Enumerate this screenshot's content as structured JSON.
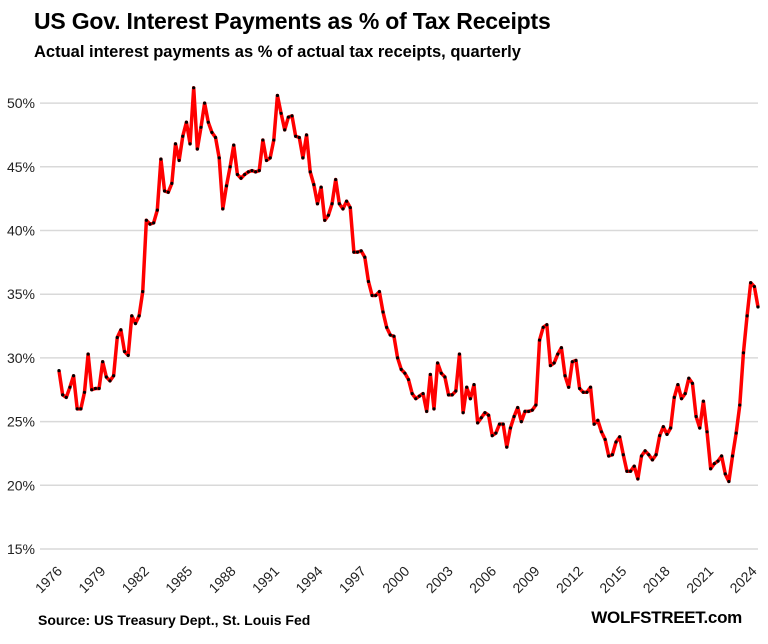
{
  "chart_data": {
    "type": "line",
    "title": "US Gov. Interest Payments as % of Tax Receipts",
    "subtitle": "Actual interest payments as % of actual tax receipts, quarterly",
    "xlabel": "",
    "ylabel": "",
    "xlim": [
      1976,
      2024.3
    ],
    "ylim": [
      15,
      50
    ],
    "x_ticks": [
      "1976",
      "1979",
      "1982",
      "1985",
      "1988",
      "1991",
      "1994",
      "1997",
      "2000",
      "2003",
      "2006",
      "2009",
      "2012",
      "2015",
      "2018",
      "2021",
      "2024"
    ],
    "y_ticks": [
      "15%",
      "20%",
      "25%",
      "30%",
      "35%",
      "40%",
      "45%",
      "50%"
    ],
    "grid": true,
    "series": [
      {
        "color": "#ff0000",
        "marker_color": "#000000",
        "values": [
          29.0,
          27.1,
          26.9,
          27.7,
          28.6,
          26.0,
          26.0,
          27.3,
          30.3,
          27.5,
          27.6,
          27.6,
          29.7,
          28.5,
          28.2,
          28.6,
          31.6,
          32.2,
          30.5,
          30.2,
          33.3,
          32.7,
          33.3,
          35.2,
          40.8,
          40.5,
          40.6,
          41.6,
          45.6,
          43.1,
          43.0,
          43.7,
          46.8,
          45.5,
          47.4,
          48.5,
          46.8,
          51.2,
          46.4,
          48.1,
          50.0,
          48.5,
          47.7,
          47.3,
          45.7,
          41.7,
          43.5,
          45.0,
          46.7,
          44.4,
          44.1,
          44.4,
          44.6,
          44.7,
          44.6,
          44.7,
          47.1,
          45.5,
          45.7,
          47.1,
          50.6,
          49.2,
          47.9,
          48.9,
          49.0,
          47.4,
          47.3,
          45.7,
          47.5,
          44.6,
          43.6,
          42.1,
          43.4,
          40.8,
          41.2,
          42.1,
          44.0,
          42.1,
          41.7,
          42.3,
          41.8,
          38.3,
          38.3,
          38.4,
          37.9,
          36.0,
          34.9,
          34.9,
          35.2,
          33.6,
          32.4,
          31.8,
          31.7,
          30.0,
          29.1,
          28.8,
          28.3,
          27.2,
          26.8,
          27.0,
          27.2,
          25.8,
          28.7,
          26.0,
          29.6,
          28.8,
          28.5,
          27.1,
          27.1,
          27.4,
          30.3,
          25.7,
          27.7,
          26.8,
          27.9,
          24.9,
          25.3,
          25.7,
          25.5,
          23.9,
          24.1,
          24.8,
          24.8,
          23.0,
          24.5,
          25.4,
          26.1,
          25.0,
          25.8,
          25.8,
          25.9,
          26.3,
          31.4,
          32.4,
          32.6,
          29.4,
          29.6,
          30.3,
          30.8,
          28.6,
          27.7,
          29.7,
          29.8,
          27.6,
          27.3,
          27.3,
          27.7,
          24.8,
          25.1,
          24.2,
          23.6,
          22.3,
          22.4,
          23.4,
          23.8,
          22.4,
          21.1,
          21.1,
          21.5,
          20.5,
          22.3,
          22.7,
          22.4,
          22.0,
          22.4,
          23.9,
          24.6,
          24.0,
          24.5,
          26.9,
          27.9,
          26.8,
          27.2,
          28.4,
          28.0,
          25.4,
          24.5,
          26.6,
          24.2,
          21.3,
          21.7,
          21.9,
          22.3,
          20.9,
          20.3,
          22.3,
          24.1,
          26.3,
          30.4,
          33.3,
          35.9,
          35.6,
          34.0
        ]
      }
    ],
    "source": "Source: US Treasury Dept., St. Louis Fed",
    "brand": "WOLFSTREET.com"
  }
}
